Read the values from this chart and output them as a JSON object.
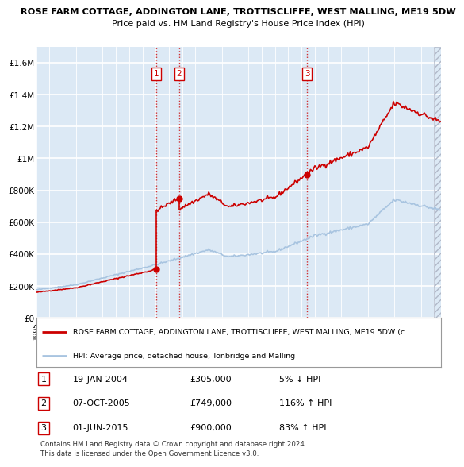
{
  "title": "ROSE FARM COTTAGE, ADDINGTON LANE, TROTTISCLIFFE, WEST MALLING, ME19 5DW",
  "subtitle": "Price paid vs. HM Land Registry's House Price Index (HPI)",
  "ylim": [
    0,
    1700000
  ],
  "yticks": [
    0,
    200000,
    400000,
    600000,
    800000,
    1000000,
    1200000,
    1400000,
    1600000
  ],
  "ytick_labels": [
    "£0",
    "£200K",
    "£400K",
    "£600K",
    "£800K",
    "£1M",
    "£1.2M",
    "£1.4M",
    "£1.6M"
  ],
  "hpi_color": "#a8c4e0",
  "price_color": "#cc0000",
  "marker_color": "#cc0000",
  "vline_color": "#cc0000",
  "bg_color": "#dce9f5",
  "grid_color": "#ffffff",
  "transactions": [
    {
      "num": 1,
      "date_label": "19-JAN-2004",
      "price": 305000,
      "pct": "5%",
      "dir": "↓",
      "x": 2004.05
    },
    {
      "num": 2,
      "date_label": "07-OCT-2005",
      "price": 749000,
      "pct": "116%",
      "dir": "↑",
      "x": 2005.77
    },
    {
      "num": 3,
      "date_label": "01-JUN-2015",
      "price": 900000,
      "pct": "83%",
      "dir": "↑",
      "x": 2015.42
    }
  ],
  "legend_label_price": "ROSE FARM COTTAGE, ADDINGTON LANE, TROTTISCLIFFE, WEST MALLING, ME19 5DW (c",
  "legend_label_hpi": "HPI: Average price, detached house, Tonbridge and Malling",
  "footer": "Contains HM Land Registry data © Crown copyright and database right 2024.\nThis data is licensed under the Open Government Licence v3.0.",
  "xmin": 1995.0,
  "xmax": 2025.5,
  "hatch_start": 2025.0
}
